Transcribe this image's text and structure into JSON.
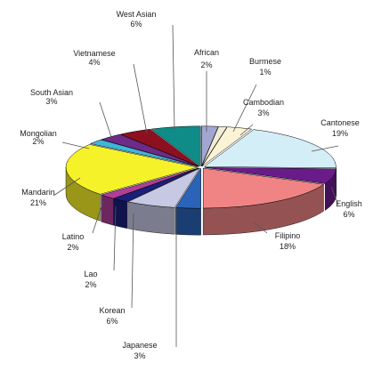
{
  "chart_data": {
    "type": "pie",
    "style": "3d-exploded",
    "legend": "none",
    "slices": [
      {
        "name": "African",
        "value": 2,
        "label_value": "2%",
        "color": "#a0a6d0"
      },
      {
        "name": "Burmese",
        "value": 1,
        "label_value": "1%",
        "color": "#f2ecd4"
      },
      {
        "name": "Cambodian",
        "value": 3,
        "label_value": "3%",
        "color": "#fbf3d6"
      },
      {
        "name": "Cantonese",
        "value": 19,
        "label_value": "19%",
        "color": "#d4eef8"
      },
      {
        "name": "English",
        "value": 6,
        "label_value": "6%",
        "color": "#6a1b8a"
      },
      {
        "name": "Filipino",
        "value": 18,
        "label_value": "18%",
        "color": "#f08484"
      },
      {
        "name": "Japanese",
        "value": 3,
        "label_value": "3%",
        "color": "#2a63b8"
      },
      {
        "name": "Korean",
        "value": 6,
        "label_value": "6%",
        "color": "#c6c8e4"
      },
      {
        "name": "Lao",
        "value": 2,
        "label_value": "2%",
        "color": "#1a1f7a"
      },
      {
        "name": "Latino",
        "value": 2,
        "label_value": "2%",
        "color": "#b03e98"
      },
      {
        "name": "Mandarin",
        "value": 21,
        "label_value": "21%",
        "color": "#f6f22a"
      },
      {
        "name": "Mongolian",
        "value": 2,
        "label_value": "2%",
        "color": "#3db6d8"
      },
      {
        "name": "South Asian",
        "value": 3,
        "label_value": "3%",
        "color": "#6e2a86"
      },
      {
        "name": "Vietnamese",
        "value": 4,
        "label_value": "4%",
        "color": "#8e1020"
      },
      {
        "name": "West Asian",
        "value": 6,
        "label_value": "6%",
        "color": "#0f8c88"
      }
    ]
  }
}
